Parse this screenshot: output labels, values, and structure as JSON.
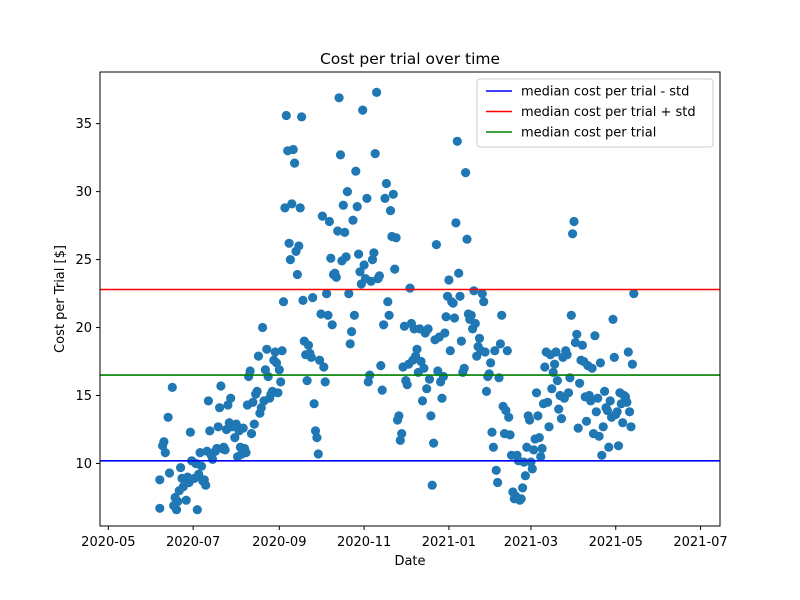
{
  "chart_data": {
    "type": "scatter",
    "title": "Cost per trial over time",
    "xlabel": "Date",
    "ylabel": "Cost per Trial [$]",
    "x_ticks": [
      "2020-05",
      "2020-07",
      "2020-09",
      "2020-11",
      "2021-01",
      "2021-03",
      "2021-05",
      "2021-07"
    ],
    "xlim": [
      "2020-04-25",
      "2021-07-15"
    ],
    "y_ticks": [
      10,
      15,
      20,
      25,
      30,
      35
    ],
    "ylim": [
      5.4,
      38.8
    ],
    "grid": false,
    "legend_position": "top-right",
    "point_color": "#1f77b4",
    "hlines": [
      {
        "name": "median cost per trial - std",
        "value": 10.2,
        "color": "#0000ff"
      },
      {
        "name": "median cost per trial + std",
        "value": 22.8,
        "color": "#ff0000"
      },
      {
        "name": "median cost per trial",
        "value": 16.5,
        "color": "#008000"
      }
    ],
    "points": [
      [
        "2020-06-07",
        6.7
      ],
      [
        "2020-06-07",
        8.8
      ],
      [
        "2020-06-09",
        11.3
      ],
      [
        "2020-06-10",
        11.6
      ],
      [
        "2020-06-11",
        10.8
      ],
      [
        "2020-06-13",
        13.4
      ],
      [
        "2020-06-14",
        9.3
      ],
      [
        "2020-06-16",
        15.6
      ],
      [
        "2020-06-17",
        6.9
      ],
      [
        "2020-06-18",
        7.5
      ],
      [
        "2020-06-19",
        6.6
      ],
      [
        "2020-06-20",
        7.2
      ],
      [
        "2020-06-21",
        8.0
      ],
      [
        "2020-06-22",
        9.7
      ],
      [
        "2020-06-23",
        8.9
      ],
      [
        "2020-06-24",
        8.3
      ],
      [
        "2020-06-26",
        7.3
      ],
      [
        "2020-06-27",
        9.0
      ],
      [
        "2020-06-28",
        8.6
      ],
      [
        "2020-06-29",
        12.3
      ],
      [
        "2020-06-30",
        10.2
      ],
      [
        "2020-07-02",
        8.9
      ],
      [
        "2020-07-03",
        10.0
      ],
      [
        "2020-07-04",
        6.6
      ],
      [
        "2020-07-05",
        9.2
      ],
      [
        "2020-07-06",
        10.8
      ],
      [
        "2020-07-07",
        9.8
      ],
      [
        "2020-07-08",
        8.7
      ],
      [
        "2020-07-09",
        8.8
      ],
      [
        "2020-07-10",
        8.4
      ],
      [
        "2020-07-11",
        10.9
      ],
      [
        "2020-07-12",
        14.6
      ],
      [
        "2020-07-13",
        12.4
      ],
      [
        "2020-07-14",
        10.6
      ],
      [
        "2020-07-15",
        10.3
      ],
      [
        "2020-07-17",
        10.9
      ],
      [
        "2020-07-18",
        11.1
      ],
      [
        "2020-07-19",
        12.7
      ],
      [
        "2020-07-20",
        14.1
      ],
      [
        "2020-07-21",
        15.7
      ],
      [
        "2020-07-22",
        11.1
      ],
      [
        "2020-07-23",
        11.2
      ],
      [
        "2020-07-24",
        11.0
      ],
      [
        "2020-07-25",
        12.5
      ],
      [
        "2020-07-26",
        14.3
      ],
      [
        "2020-07-27",
        13.0
      ],
      [
        "2020-07-28",
        14.8
      ],
      [
        "2020-07-29",
        12.7
      ],
      [
        "2020-07-30",
        12.8
      ],
      [
        "2020-07-31",
        11.9
      ],
      [
        "2020-08-01",
        12.9
      ],
      [
        "2020-08-02",
        10.5
      ],
      [
        "2020-08-03",
        12.4
      ],
      [
        "2020-08-04",
        11.2
      ],
      [
        "2020-08-05",
        10.7
      ],
      [
        "2020-08-06",
        12.6
      ],
      [
        "2020-08-07",
        11.1
      ],
      [
        "2020-08-08",
        10.8
      ],
      [
        "2020-08-09",
        14.3
      ],
      [
        "2020-08-10",
        16.4
      ],
      [
        "2020-08-11",
        16.8
      ],
      [
        "2020-08-12",
        12.2
      ],
      [
        "2020-08-13",
        14.5
      ],
      [
        "2020-08-14",
        12.9
      ],
      [
        "2020-08-15",
        15.1
      ],
      [
        "2020-08-16",
        15.3
      ],
      [
        "2020-08-17",
        17.9
      ],
      [
        "2020-08-18",
        13.7
      ],
      [
        "2020-08-19",
        14.1
      ],
      [
        "2020-08-20",
        20.0
      ],
      [
        "2020-08-21",
        14.6
      ],
      [
        "2020-08-22",
        16.9
      ],
      [
        "2020-08-23",
        18.4
      ],
      [
        "2020-08-24",
        16.4
      ],
      [
        "2020-08-25",
        14.8
      ],
      [
        "2020-08-26",
        15.1
      ],
      [
        "2020-08-27",
        15.3
      ],
      [
        "2020-08-28",
        17.6
      ],
      [
        "2020-08-29",
        18.2
      ],
      [
        "2020-08-30",
        17.4
      ],
      [
        "2020-08-31",
        15.2
      ],
      [
        "2020-09-01",
        16.9
      ],
      [
        "2020-09-02",
        16.0
      ],
      [
        "2020-09-03",
        18.3
      ],
      [
        "2020-09-04",
        21.9
      ],
      [
        "2020-09-05",
        28.8
      ],
      [
        "2020-09-06",
        35.6
      ],
      [
        "2020-09-07",
        33.0
      ],
      [
        "2020-09-08",
        26.2
      ],
      [
        "2020-09-09",
        25.0
      ],
      [
        "2020-09-10",
        29.1
      ],
      [
        "2020-09-11",
        33.1
      ],
      [
        "2020-09-12",
        32.1
      ],
      [
        "2020-09-13",
        25.6
      ],
      [
        "2020-09-14",
        23.9
      ],
      [
        "2020-09-15",
        26.0
      ],
      [
        "2020-09-16",
        28.8
      ],
      [
        "2020-09-17",
        35.5
      ],
      [
        "2020-09-18",
        22.0
      ],
      [
        "2020-09-19",
        19.0
      ],
      [
        "2020-09-20",
        18.0
      ],
      [
        "2020-09-21",
        16.1
      ],
      [
        "2020-09-22",
        18.7
      ],
      [
        "2020-09-23",
        18.1
      ],
      [
        "2020-09-24",
        17.8
      ],
      [
        "2020-09-25",
        22.2
      ],
      [
        "2020-09-26",
        14.4
      ],
      [
        "2020-09-27",
        12.4
      ],
      [
        "2020-09-28",
        11.9
      ],
      [
        "2020-09-29",
        10.7
      ],
      [
        "2020-09-30",
        17.6
      ],
      [
        "2020-10-01",
        21.0
      ],
      [
        "2020-10-02",
        28.2
      ],
      [
        "2020-10-03",
        17.1
      ],
      [
        "2020-10-04",
        16.0
      ],
      [
        "2020-10-05",
        22.5
      ],
      [
        "2020-10-06",
        20.9
      ],
      [
        "2020-10-07",
        27.8
      ],
      [
        "2020-10-08",
        25.1
      ],
      [
        "2020-10-09",
        20.2
      ],
      [
        "2020-10-10",
        23.9
      ],
      [
        "2020-10-11",
        24.0
      ],
      [
        "2020-10-12",
        23.7
      ],
      [
        "2020-10-13",
        27.1
      ],
      [
        "2020-10-14",
        36.9
      ],
      [
        "2020-10-15",
        32.7
      ],
      [
        "2020-10-16",
        24.9
      ],
      [
        "2020-10-17",
        29.0
      ],
      [
        "2020-10-18",
        27.0
      ],
      [
        "2020-10-19",
        25.2
      ],
      [
        "2020-10-20",
        30.0
      ],
      [
        "2020-10-21",
        22.5
      ],
      [
        "2020-10-22",
        18.8
      ],
      [
        "2020-10-23",
        19.7
      ],
      [
        "2020-10-24",
        27.9
      ],
      [
        "2020-10-25",
        20.9
      ],
      [
        "2020-10-26",
        31.5
      ],
      [
        "2020-10-27",
        28.9
      ],
      [
        "2020-10-28",
        25.4
      ],
      [
        "2020-10-29",
        24.1
      ],
      [
        "2020-10-30",
        23.2
      ],
      [
        "2020-10-31",
        36.0
      ],
      [
        "2020-11-01",
        24.6
      ],
      [
        "2020-11-02",
        23.6
      ],
      [
        "2020-11-03",
        29.5
      ],
      [
        "2020-11-04",
        16.0
      ],
      [
        "2020-11-05",
        16.5
      ],
      [
        "2020-11-06",
        23.4
      ],
      [
        "2020-11-07",
        25.0
      ],
      [
        "2020-11-08",
        25.5
      ],
      [
        "2020-11-09",
        32.8
      ],
      [
        "2020-11-10",
        37.3
      ],
      [
        "2020-11-11",
        23.6
      ],
      [
        "2020-11-12",
        23.8
      ],
      [
        "2020-11-13",
        17.2
      ],
      [
        "2020-11-14",
        15.4
      ],
      [
        "2020-11-15",
        20.2
      ],
      [
        "2020-11-16",
        29.5
      ],
      [
        "2020-11-17",
        30.6
      ],
      [
        "2020-11-18",
        21.9
      ],
      [
        "2020-11-19",
        20.9
      ],
      [
        "2020-11-20",
        28.6
      ],
      [
        "2020-11-21",
        26.7
      ],
      [
        "2020-11-22",
        29.8
      ],
      [
        "2020-11-23",
        24.3
      ],
      [
        "2020-11-24",
        26.6
      ],
      [
        "2020-11-25",
        13.2
      ],
      [
        "2020-11-26",
        13.5
      ],
      [
        "2020-11-27",
        11.7
      ],
      [
        "2020-11-28",
        12.2
      ],
      [
        "2020-11-29",
        17.1
      ],
      [
        "2020-11-30",
        20.1
      ],
      [
        "2020-12-01",
        16.1
      ],
      [
        "2020-12-02",
        15.8
      ],
      [
        "2020-12-03",
        17.3
      ],
      [
        "2020-12-04",
        22.9
      ],
      [
        "2020-12-05",
        20.3
      ],
      [
        "2020-12-06",
        17.6
      ],
      [
        "2020-12-07",
        19.9
      ],
      [
        "2020-12-08",
        17.9
      ],
      [
        "2020-12-09",
        18.4
      ],
      [
        "2020-12-10",
        16.7
      ],
      [
        "2020-12-11",
        19.9
      ],
      [
        "2020-12-12",
        17.5
      ],
      [
        "2020-12-13",
        14.6
      ],
      [
        "2020-12-14",
        17.0
      ],
      [
        "2020-12-15",
        19.6
      ],
      [
        "2020-12-16",
        15.5
      ],
      [
        "2020-12-17",
        19.9
      ],
      [
        "2020-12-18",
        16.2
      ],
      [
        "2020-12-19",
        13.5
      ],
      [
        "2020-12-20",
        8.4
      ],
      [
        "2020-12-21",
        11.5
      ],
      [
        "2020-12-22",
        19.1
      ],
      [
        "2020-12-23",
        26.1
      ],
      [
        "2020-12-24",
        16.8
      ],
      [
        "2020-12-25",
        19.3
      ],
      [
        "2020-12-26",
        16.0
      ],
      [
        "2020-12-27",
        14.8
      ],
      [
        "2020-12-28",
        16.4
      ],
      [
        "2020-12-29",
        19.6
      ],
      [
        "2020-12-30",
        20.8
      ],
      [
        "2020-12-31",
        22.3
      ],
      [
        "2021-01-01",
        23.5
      ],
      [
        "2021-01-02",
        18.3
      ],
      [
        "2021-01-03",
        21.9
      ],
      [
        "2021-01-04",
        21.8
      ],
      [
        "2021-01-05",
        20.7
      ],
      [
        "2021-01-06",
        27.7
      ],
      [
        "2021-01-07",
        33.7
      ],
      [
        "2021-01-08",
        24.0
      ],
      [
        "2021-01-09",
        22.3
      ],
      [
        "2021-01-10",
        19.0
      ],
      [
        "2021-01-11",
        16.7
      ],
      [
        "2021-01-12",
        17.0
      ],
      [
        "2021-01-13",
        31.4
      ],
      [
        "2021-01-14",
        26.5
      ],
      [
        "2021-01-15",
        21.0
      ],
      [
        "2021-01-16",
        20.6
      ],
      [
        "2021-01-17",
        20.9
      ],
      [
        "2021-01-18",
        19.9
      ],
      [
        "2021-01-19",
        22.7
      ],
      [
        "2021-01-20",
        20.3
      ],
      [
        "2021-01-21",
        17.9
      ],
      [
        "2021-01-22",
        18.6
      ],
      [
        "2021-01-23",
        19.2
      ],
      [
        "2021-01-24",
        18.3
      ],
      [
        "2021-01-25",
        22.5
      ],
      [
        "2021-01-26",
        21.9
      ],
      [
        "2021-01-27",
        18.2
      ],
      [
        "2021-01-28",
        15.3
      ],
      [
        "2021-01-29",
        16.4
      ],
      [
        "2021-01-30",
        16.6
      ],
      [
        "2021-01-31",
        17.4
      ],
      [
        "2021-02-01",
        12.3
      ],
      [
        "2021-02-02",
        11.2
      ],
      [
        "2021-02-03",
        18.3
      ],
      [
        "2021-02-04",
        9.5
      ],
      [
        "2021-02-05",
        8.6
      ],
      [
        "2021-02-06",
        16.3
      ],
      [
        "2021-02-07",
        18.8
      ],
      [
        "2021-02-08",
        20.9
      ],
      [
        "2021-02-09",
        14.2
      ],
      [
        "2021-02-10",
        12.2
      ],
      [
        "2021-02-11",
        13.9
      ],
      [
        "2021-02-12",
        18.3
      ],
      [
        "2021-02-13",
        13.4
      ],
      [
        "2021-02-14",
        12.1
      ],
      [
        "2021-02-15",
        10.6
      ],
      [
        "2021-02-16",
        7.9
      ],
      [
        "2021-02-17",
        7.4
      ],
      [
        "2021-02-18",
        7.6
      ],
      [
        "2021-02-19",
        10.6
      ],
      [
        "2021-02-20",
        10.2
      ],
      [
        "2021-02-21",
        7.3
      ],
      [
        "2021-02-22",
        7.4
      ],
      [
        "2021-02-23",
        8.2
      ],
      [
        "2021-02-24",
        10.1
      ],
      [
        "2021-02-25",
        9.1
      ],
      [
        "2021-02-26",
        11.2
      ],
      [
        "2021-02-27",
        13.5
      ],
      [
        "2021-02-28",
        13.2
      ],
      [
        "2021-03-01",
        10.1
      ],
      [
        "2021-03-02",
        9.6
      ],
      [
        "2021-03-03",
        11.0
      ],
      [
        "2021-03-04",
        11.8
      ],
      [
        "2021-03-05",
        15.2
      ],
      [
        "2021-03-06",
        13.5
      ],
      [
        "2021-03-07",
        11.9
      ],
      [
        "2021-03-08",
        10.5
      ],
      [
        "2021-03-09",
        11.1
      ],
      [
        "2021-03-10",
        14.4
      ],
      [
        "2021-03-11",
        17.1
      ],
      [
        "2021-03-12",
        18.2
      ],
      [
        "2021-03-13",
        14.5
      ],
      [
        "2021-03-14",
        12.7
      ],
      [
        "2021-03-15",
        18.0
      ],
      [
        "2021-03-16",
        15.5
      ],
      [
        "2021-03-17",
        16.7
      ],
      [
        "2021-03-18",
        17.3
      ],
      [
        "2021-03-19",
        18.2
      ],
      [
        "2021-03-20",
        16.1
      ],
      [
        "2021-03-21",
        14.0
      ],
      [
        "2021-03-22",
        15.0
      ],
      [
        "2021-03-23",
        13.3
      ],
      [
        "2021-03-24",
        17.8
      ],
      [
        "2021-03-25",
        14.8
      ],
      [
        "2021-03-26",
        18.3
      ],
      [
        "2021-03-27",
        18.0
      ],
      [
        "2021-03-28",
        15.2
      ],
      [
        "2021-03-29",
        16.3
      ],
      [
        "2021-03-30",
        20.9
      ],
      [
        "2021-03-31",
        26.9
      ],
      [
        "2021-04-01",
        27.8
      ],
      [
        "2021-04-02",
        18.9
      ],
      [
        "2021-04-03",
        19.5
      ],
      [
        "2021-04-04",
        12.6
      ],
      [
        "2021-04-05",
        15.9
      ],
      [
        "2021-04-06",
        17.6
      ],
      [
        "2021-04-07",
        18.7
      ],
      [
        "2021-04-08",
        17.5
      ],
      [
        "2021-04-09",
        14.9
      ],
      [
        "2021-04-10",
        13.1
      ],
      [
        "2021-04-11",
        17.2
      ],
      [
        "2021-04-12",
        15.0
      ],
      [
        "2021-04-13",
        14.6
      ],
      [
        "2021-04-14",
        17.0
      ],
      [
        "2021-04-15",
        12.2
      ],
      [
        "2021-04-16",
        19.4
      ],
      [
        "2021-04-17",
        13.8
      ],
      [
        "2021-04-18",
        14.8
      ],
      [
        "2021-04-19",
        12.0
      ],
      [
        "2021-04-20",
        17.4
      ],
      [
        "2021-04-21",
        10.6
      ],
      [
        "2021-04-22",
        12.7
      ],
      [
        "2021-04-23",
        15.3
      ],
      [
        "2021-04-24",
        14.1
      ],
      [
        "2021-04-25",
        13.9
      ],
      [
        "2021-04-26",
        11.2
      ],
      [
        "2021-04-27",
        14.6
      ],
      [
        "2021-04-28",
        13.4
      ],
      [
        "2021-04-29",
        20.6
      ],
      [
        "2021-04-30",
        17.8
      ],
      [
        "2021-05-01",
        13.6
      ],
      [
        "2021-05-02",
        13.8
      ],
      [
        "2021-05-03",
        11.3
      ],
      [
        "2021-05-04",
        15.2
      ],
      [
        "2021-05-05",
        14.4
      ],
      [
        "2021-05-06",
        13.0
      ],
      [
        "2021-05-07",
        15.0
      ],
      [
        "2021-05-08",
        14.9
      ],
      [
        "2021-05-09",
        14.5
      ],
      [
        "2021-05-10",
        18.2
      ],
      [
        "2021-05-11",
        13.8
      ],
      [
        "2021-05-12",
        12.7
      ],
      [
        "2021-05-13",
        17.3
      ],
      [
        "2021-05-14",
        22.5
      ]
    ]
  }
}
